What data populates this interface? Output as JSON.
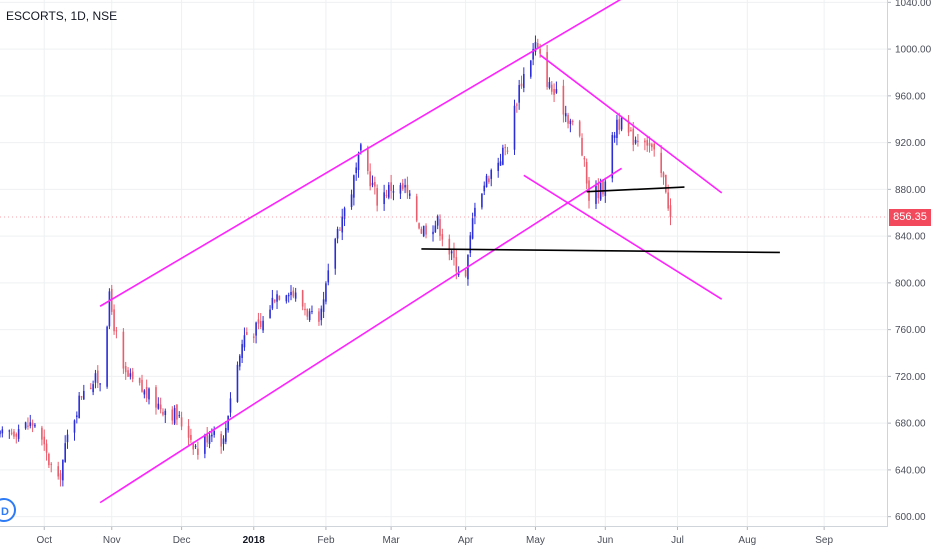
{
  "chart_data": {
    "type": "candlestick",
    "title": "ESCORTS, 1D, NSE",
    "last_price": "856.35",
    "y_axis": {
      "ticks": [
        "600.00",
        "640.00",
        "680.00",
        "720.00",
        "760.00",
        "800.00",
        "840.00",
        "880.00",
        "920.00",
        "960.00",
        "1000.00",
        "1040.00"
      ],
      "range": [
        592,
        1042
      ]
    },
    "x_axis": {
      "range": [
        "2017-09-14",
        "2017-09-14"
      ],
      "range_end": "2018-09-30",
      "ticks": [
        {
          "label": "Oct",
          "date": "2017-10-03"
        },
        {
          "label": "Nov",
          "date": "2017-11-01"
        },
        {
          "label": "Dec",
          "date": "2017-12-01"
        },
        {
          "label": "2018",
          "date": "2018-01-01",
          "bold": true
        },
        {
          "label": "Feb",
          "date": "2018-02-01"
        },
        {
          "label": "Mar",
          "date": "2018-03-01"
        },
        {
          "label": "Apr",
          "date": "2018-04-02"
        },
        {
          "label": "May",
          "date": "2018-05-02"
        },
        {
          "label": "Jun",
          "date": "2018-06-01"
        },
        {
          "label": "Jul",
          "date": "2018-07-02"
        },
        {
          "label": "Aug",
          "date": "2018-08-01"
        },
        {
          "label": "Sep",
          "date": "2018-09-03"
        }
      ]
    },
    "colors": {
      "up": "#2b2ed6",
      "down": "#ea5d6d",
      "trendline": "#ff22ff",
      "level": "#000000",
      "grid": "#eef0f3",
      "last_price": "#f2495c"
    },
    "anchor_closes": [
      [
        "2017-09-14",
        668
      ],
      [
        "2017-09-22",
        676
      ],
      [
        "2017-09-29",
        680
      ],
      [
        "2017-10-04",
        652
      ],
      [
        "2017-10-09",
        628
      ],
      [
        "2017-10-13",
        668
      ],
      [
        "2017-10-20",
        712
      ],
      [
        "2017-10-27",
        718
      ],
      [
        "2017-10-31",
        786
      ],
      [
        "2017-11-06",
        722
      ],
      [
        "2017-11-14",
        708
      ],
      [
        "2017-11-21",
        696
      ],
      [
        "2017-11-28",
        688
      ],
      [
        "2017-12-04",
        672
      ],
      [
        "2017-12-08",
        656
      ],
      [
        "2017-12-14",
        676
      ],
      [
        "2017-12-19",
        664
      ],
      [
        "2017-12-22",
        704
      ],
      [
        "2017-12-28",
        756
      ],
      [
        "2018-01-04",
        762
      ],
      [
        "2018-01-10",
        790
      ],
      [
        "2018-01-16",
        796
      ],
      [
        "2018-01-24",
        776
      ],
      [
        "2018-01-29",
        760
      ],
      [
        "2018-02-05",
        840
      ],
      [
        "2018-02-12",
        880
      ],
      [
        "2018-02-16",
        912
      ],
      [
        "2018-02-23",
        872
      ],
      [
        "2018-03-01",
        882
      ],
      [
        "2018-03-07",
        880
      ],
      [
        "2018-03-14",
        846
      ],
      [
        "2018-03-21",
        852
      ],
      [
        "2018-03-27",
        822
      ],
      [
        "2018-04-02",
        804
      ],
      [
        "2018-04-06",
        870
      ],
      [
        "2018-04-13",
        896
      ],
      [
        "2018-04-20",
        918
      ],
      [
        "2018-04-25",
        968
      ],
      [
        "2018-05-02",
        1004
      ],
      [
        "2018-05-08",
        968
      ],
      [
        "2018-05-14",
        950
      ],
      [
        "2018-05-21",
        924
      ],
      [
        "2018-05-25",
        874
      ],
      [
        "2018-05-31",
        882
      ],
      [
        "2018-06-06",
        940
      ],
      [
        "2018-06-12",
        924
      ],
      [
        "2018-06-18",
        926
      ],
      [
        "2018-06-22",
        908
      ],
      [
        "2018-06-27",
        882
      ],
      [
        "2018-06-29",
        856.35
      ]
    ],
    "drawings": [
      {
        "kind": "trendline",
        "color": "trendline",
        "from": [
          "2017-10-27",
          612
        ],
        "to": [
          "2018-06-08",
          898
        ]
      },
      {
        "kind": "trendline",
        "color": "trendline",
        "from": [
          "2017-10-27",
          780
        ],
        "to": [
          "2018-06-08",
          1043
        ]
      },
      {
        "kind": "trendline",
        "color": "trendline",
        "from": [
          "2018-05-04",
          995
        ],
        "to": [
          "2018-07-21",
          877
        ]
      },
      {
        "kind": "trendline",
        "color": "trendline",
        "from": [
          "2018-04-27",
          892
        ],
        "to": [
          "2018-07-21",
          786
        ]
      },
      {
        "kind": "horizontal",
        "color": "level",
        "from": [
          "2018-03-14",
          829
        ],
        "to": [
          "2018-08-15",
          826
        ]
      },
      {
        "kind": "horizontal",
        "color": "level",
        "from": [
          "2018-05-24",
          878
        ],
        "to": [
          "2018-07-05",
          882
        ]
      }
    ]
  },
  "logo": {
    "text": "D"
  }
}
